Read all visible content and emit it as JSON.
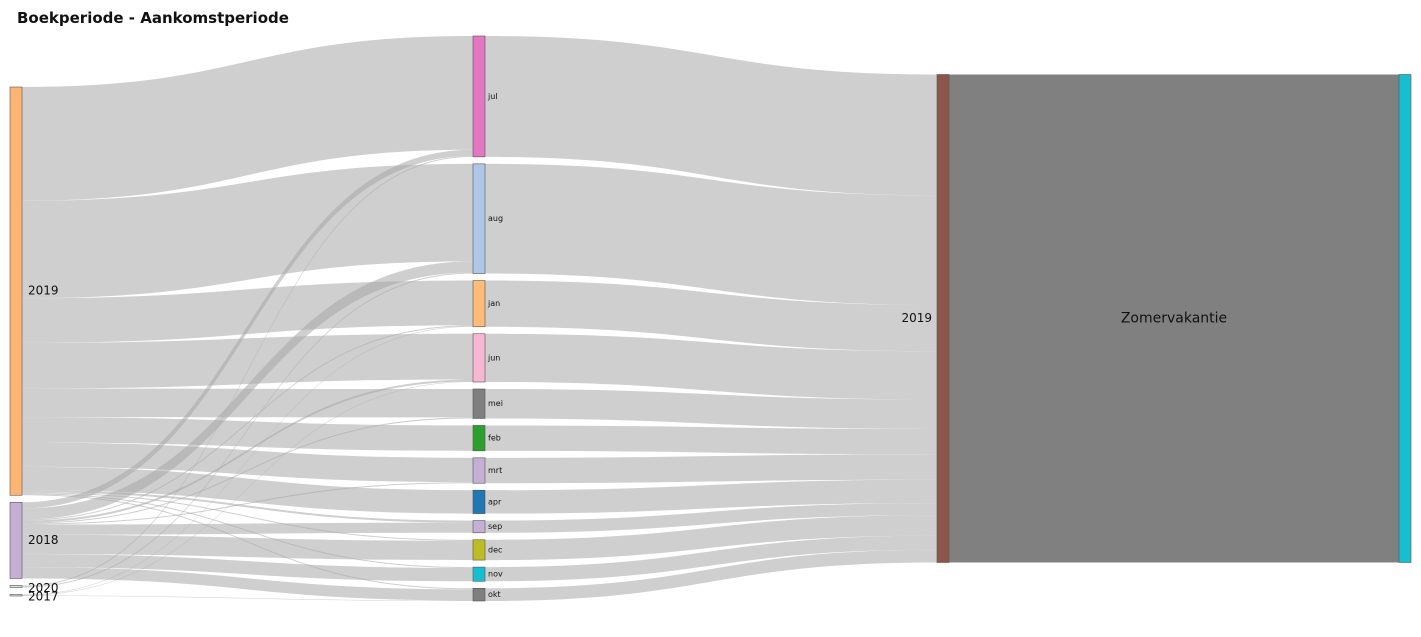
{
  "chart_data": {
    "type": "sankey",
    "title": "Boekperiode - Aankomstperiode",
    "stages": [
      {
        "nodes": [
          {
            "id": "b2019",
            "label": "2019",
            "color": "#fdb574"
          },
          {
            "id": "b2018",
            "label": "2018",
            "color": "#c5b0d5"
          },
          {
            "id": "b2020",
            "label": "2020",
            "color": "#dddddd"
          },
          {
            "id": "b2017",
            "label": "2017",
            "color": "#dddddd"
          }
        ]
      },
      {
        "nodes": [
          {
            "id": "jul",
            "label": "jul",
            "color": "#e377c2"
          },
          {
            "id": "aug",
            "label": "aug",
            "color": "#aec7e8"
          },
          {
            "id": "jan",
            "label": "jan",
            "color": "#ffbb78"
          },
          {
            "id": "jun",
            "label": "jun",
            "color": "#f7b6d2"
          },
          {
            "id": "mei",
            "label": "mei",
            "color": "#7f7f7f"
          },
          {
            "id": "feb",
            "label": "feb",
            "color": "#2ca02c"
          },
          {
            "id": "mrt",
            "label": "mrt",
            "color": "#c5b0d5"
          },
          {
            "id": "apr",
            "label": "apr",
            "color": "#1f77b4"
          },
          {
            "id": "sep",
            "label": "sep",
            "color": "#c5b0d5"
          },
          {
            "id": "dec",
            "label": "dec",
            "color": "#bcbd22"
          },
          {
            "id": "nov",
            "label": "nov",
            "color": "#17becf"
          },
          {
            "id": "okt",
            "label": "okt",
            "color": "#7f7f7f"
          }
        ]
      },
      {
        "nodes": [
          {
            "id": "y2019",
            "label": "2019",
            "color": "#8c564b"
          }
        ]
      },
      {
        "nodes": [
          {
            "id": "zomer",
            "label": "Zomervakantie",
            "color": "#17becf"
          }
        ]
      }
    ],
    "links": [
      {
        "source": "b2019",
        "target": "jul",
        "value": 112
      },
      {
        "source": "b2019",
        "target": "aug",
        "value": 96
      },
      {
        "source": "b2019",
        "target": "jan",
        "value": 44
      },
      {
        "source": "b2019",
        "target": "jun",
        "value": 45
      },
      {
        "source": "b2019",
        "target": "mei",
        "value": 28
      },
      {
        "source": "b2019",
        "target": "feb",
        "value": 25
      },
      {
        "source": "b2019",
        "target": "mrt",
        "value": 24
      },
      {
        "source": "b2019",
        "target": "apr",
        "value": 23
      },
      {
        "source": "b2019",
        "target": "sep",
        "value": 2
      },
      {
        "source": "b2019",
        "target": "dec",
        "value": 1
      },
      {
        "source": "b2019",
        "target": "nov",
        "value": 1
      },
      {
        "source": "b2019",
        "target": "okt",
        "value": 1
      },
      {
        "source": "b2018",
        "target": "jul",
        "value": 6
      },
      {
        "source": "b2018",
        "target": "aug",
        "value": 11
      },
      {
        "source": "b2018",
        "target": "jan",
        "value": 1
      },
      {
        "source": "b2018",
        "target": "jun",
        "value": 2
      },
      {
        "source": "b2018",
        "target": "mei",
        "value": 1
      },
      {
        "source": "b2018",
        "target": "mrt",
        "value": 1
      },
      {
        "source": "b2018",
        "target": "sep",
        "value": 10
      },
      {
        "source": "b2018",
        "target": "dec",
        "value": 19
      },
      {
        "source": "b2018",
        "target": "nov",
        "value": 13
      },
      {
        "source": "b2018",
        "target": "okt",
        "value": 11
      },
      {
        "source": "b2020",
        "target": "jul",
        "value": 1
      },
      {
        "source": "b2020",
        "target": "aug",
        "value": 1
      },
      {
        "source": "b2017",
        "target": "jan",
        "value": 0.5
      },
      {
        "source": "b2017",
        "target": "jun",
        "value": 0.5
      },
      {
        "source": "b2017",
        "target": "okt",
        "value": 0.5
      },
      {
        "source": "jul",
        "target": "y2019",
        "value": 119
      },
      {
        "source": "aug",
        "target": "y2019",
        "value": 108
      },
      {
        "source": "jan",
        "target": "y2019",
        "value": 45.5
      },
      {
        "source": "jun",
        "target": "y2019",
        "value": 47.5
      },
      {
        "source": "mei",
        "target": "y2019",
        "value": 29
      },
      {
        "source": "feb",
        "target": "y2019",
        "value": 25
      },
      {
        "source": "mrt",
        "target": "y2019",
        "value": 25
      },
      {
        "source": "apr",
        "target": "y2019",
        "value": 23
      },
      {
        "source": "sep",
        "target": "y2019",
        "value": 12
      },
      {
        "source": "dec",
        "target": "y2019",
        "value": 20
      },
      {
        "source": "nov",
        "target": "y2019",
        "value": 14
      },
      {
        "source": "okt",
        "target": "y2019",
        "value": 12.5
      },
      {
        "source": "y2019",
        "target": "zomer",
        "value": 480.5
      }
    ]
  }
}
